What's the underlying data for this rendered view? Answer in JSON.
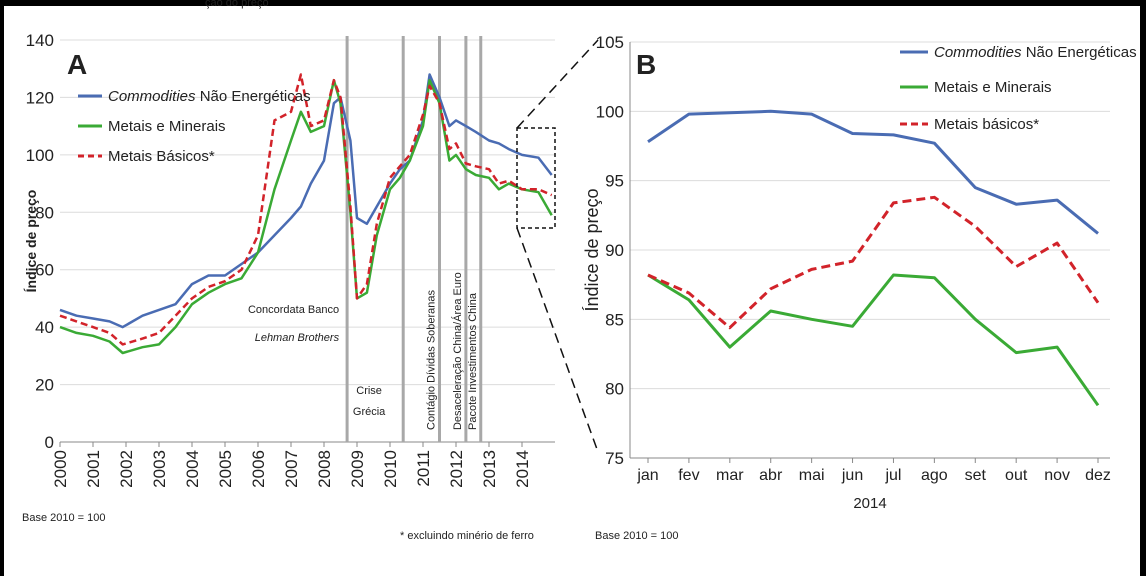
{
  "top_fragment": "ção do preço",
  "notes": {
    "base_left": "Base 2010 = 100",
    "footnote": "* excluindo minério de ferro",
    "base_right": "Base 2010 = 100"
  },
  "colors": {
    "commodities": "#4a6cb3",
    "metais_minerais": "#3aaa35",
    "metais_basicos": "#d2232a",
    "event_line": "#a8a8a8",
    "grid": "#dcdcdc"
  },
  "chart_data": [
    {
      "type": "line",
      "panel": "A",
      "ylabel": "Índice de preço",
      "xlabel": "",
      "ylim": [
        0,
        140
      ],
      "yticks": [
        0,
        20,
        40,
        60,
        80,
        100,
        120,
        140
      ],
      "xlim": [
        2000,
        2015
      ],
      "xticks": [
        "2000",
        "2001",
        "2002",
        "2003",
        "2004",
        "2005",
        "2006",
        "2007",
        "2008",
        "2009",
        "2010",
        "2011",
        "2012",
        "2013",
        "2014"
      ],
      "grid": true,
      "legend": "top-left",
      "series": [
        {
          "name": "Commodities",
          "name_suffix": " Não Energéticas",
          "x": [
            2000,
            2000.5,
            2001,
            2001.5,
            2001.9,
            2002.5,
            2003,
            2003.5,
            2004,
            2004.5,
            2005,
            2005.5,
            2006,
            2006.5,
            2007,
            2007.3,
            2007.6,
            2008,
            2008.3,
            2008.5,
            2008.8,
            2009,
            2009.3,
            2009.6,
            2010,
            2010.3,
            2010.6,
            2011,
            2011.2,
            2011.5,
            2011.8,
            2012,
            2012.3,
            2012.6,
            2013,
            2013.3,
            2013.6,
            2014,
            2014.5,
            2014.9
          ],
          "y": [
            46,
            44,
            43,
            42,
            40,
            44,
            46,
            48,
            55,
            58,
            58,
            62,
            66,
            72,
            78,
            82,
            90,
            98,
            118,
            120,
            105,
            78,
            76,
            82,
            90,
            95,
            98,
            112,
            128,
            120,
            110,
            112,
            110,
            108,
            105,
            104,
            102,
            100,
            99,
            93
          ]
        },
        {
          "name": "Metais e Minerais",
          "x": [
            2000,
            2000.5,
            2001,
            2001.5,
            2001.9,
            2002.5,
            2003,
            2003.5,
            2004,
            2004.5,
            2005,
            2005.5,
            2006,
            2006.5,
            2007,
            2007.3,
            2007.6,
            2008,
            2008.3,
            2008.5,
            2008.8,
            2009,
            2009.3,
            2009.6,
            2010,
            2010.3,
            2010.6,
            2011,
            2011.2,
            2011.5,
            2011.8,
            2012,
            2012.3,
            2012.6,
            2013,
            2013.3,
            2013.6,
            2014,
            2014.5,
            2014.9
          ],
          "y": [
            40,
            38,
            37,
            35,
            31,
            33,
            34,
            40,
            48,
            52,
            55,
            57,
            66,
            88,
            105,
            115,
            108,
            110,
            126,
            118,
            80,
            50,
            52,
            72,
            88,
            92,
            98,
            110,
            126,
            118,
            98,
            100,
            95,
            93,
            92,
            88,
            90,
            88,
            87,
            79
          ]
        },
        {
          "name": "Metais Básicos*",
          "x": [
            2000,
            2000.5,
            2001,
            2001.5,
            2001.9,
            2002.5,
            2003,
            2003.5,
            2004,
            2004.5,
            2005,
            2005.5,
            2006,
            2006.5,
            2007,
            2007.3,
            2007.6,
            2008,
            2008.3,
            2008.5,
            2008.8,
            2009,
            2009.3,
            2009.6,
            2010,
            2010.3,
            2010.6,
            2011,
            2011.2,
            2011.5,
            2011.8,
            2012,
            2012.3,
            2012.6,
            2013,
            2013.3,
            2013.6,
            2014,
            2014.5,
            2014.9
          ],
          "y": [
            44,
            42,
            40,
            38,
            34,
            36,
            38,
            44,
            50,
            54,
            56,
            60,
            72,
            112,
            115,
            128,
            110,
            112,
            126,
            120,
            82,
            50,
            55,
            76,
            92,
            96,
            100,
            114,
            124,
            118,
            102,
            104,
            97,
            96,
            95,
            90,
            91,
            88,
            88,
            86
          ]
        }
      ],
      "events": [
        {
          "x": 2008.7,
          "label": "Concordata Banco",
          "label2": "Lehman Brothers"
        },
        {
          "x": 2010.4,
          "label": "Crise",
          "label2": "Grécia"
        },
        {
          "x": 2011.5,
          "label": "Contágio Dívidas Soberanas"
        },
        {
          "x": 2012.3,
          "label": "Desaceleração China/Área Euro"
        },
        {
          "x": 2012.75,
          "label": "Pacote Investimentos China"
        }
      ]
    },
    {
      "type": "line",
      "panel": "B",
      "ylabel": "Índice de preço",
      "xlabel": "2014",
      "ylim": [
        75,
        105
      ],
      "yticks": [
        75,
        80,
        85,
        90,
        95,
        100,
        105
      ],
      "categories": [
        "jan",
        "fev",
        "mar",
        "abr",
        "mai",
        "jun",
        "jul",
        "ago",
        "set",
        "out",
        "nov",
        "dez"
      ],
      "grid": true,
      "legend": "top-right",
      "series": [
        {
          "name": "Commodities",
          "name_suffix": " Não Energéticas",
          "values": [
            97.8,
            99.8,
            99.9,
            100.0,
            99.8,
            98.4,
            98.3,
            97.7,
            94.5,
            93.3,
            93.6,
            91.2
          ]
        },
        {
          "name": "Metais e Minerais",
          "values": [
            88.2,
            86.4,
            83.0,
            85.6,
            85.0,
            84.5,
            88.2,
            88.0,
            85.0,
            82.6,
            83.0,
            78.8
          ]
        },
        {
          "name": "Metais básicos*",
          "values": [
            88.2,
            86.9,
            84.4,
            87.2,
            88.6,
            89.2,
            93.4,
            93.8,
            91.7,
            88.8,
            90.5,
            86.2
          ]
        }
      ]
    }
  ]
}
